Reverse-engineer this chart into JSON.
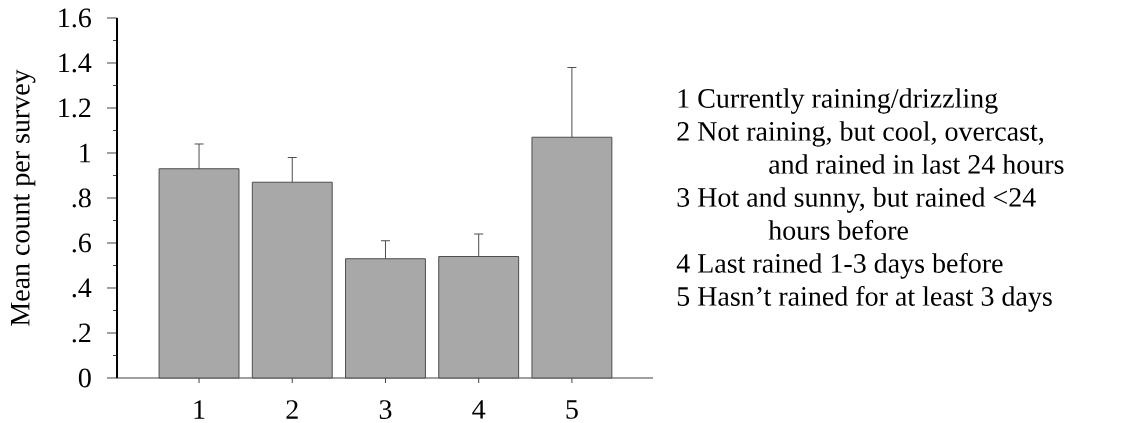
{
  "chart_data": {
    "type": "bar",
    "ylabel": "Mean count per survey",
    "categories": [
      "1",
      "2",
      "3",
      "4",
      "5"
    ],
    "values": [
      0.93,
      0.87,
      0.53,
      0.54,
      1.07
    ],
    "errors": [
      [
        0.93,
        1.04
      ],
      [
        0.87,
        0.98
      ],
      [
        0.53,
        0.61
      ],
      [
        0.54,
        0.64
      ],
      [
        1.07,
        1.38
      ]
    ],
    "color": "#a8a8a8",
    "ylim": [
      0,
      1.6
    ],
    "yticks": [
      0,
      {
        "value": 0.1,
        "label": null
      },
      {
        "value": 0.2,
        "label": ".2"
      },
      {
        "value": 0.3,
        "label": null
      },
      {
        "value": 0.4,
        "label": ".4"
      },
      {
        "value": 0.5,
        "label": null
      },
      {
        "value": 0.6,
        "label": ".6"
      },
      {
        "value": 0.7,
        "label": null
      },
      {
        "value": 0.8,
        "label": ".8"
      },
      {
        "value": 0.9,
        "label": null
      },
      1,
      {
        "value": 1.1,
        "label": null
      },
      1.2,
      {
        "value": 1.3,
        "label": null
      },
      1.4,
      {
        "value": 1.5,
        "label": null
      },
      1.6
    ],
    "annotations": [
      "1 Currently raining/drizzling",
      "2 Not raining, but cool, overcast, and rained in last 24 hours",
      "3 Hot and sunny, but rained <24 hours before",
      "4 Last rained 1-3 days before",
      "5 Hasn’t rained for at least 3 days"
    ]
  }
}
